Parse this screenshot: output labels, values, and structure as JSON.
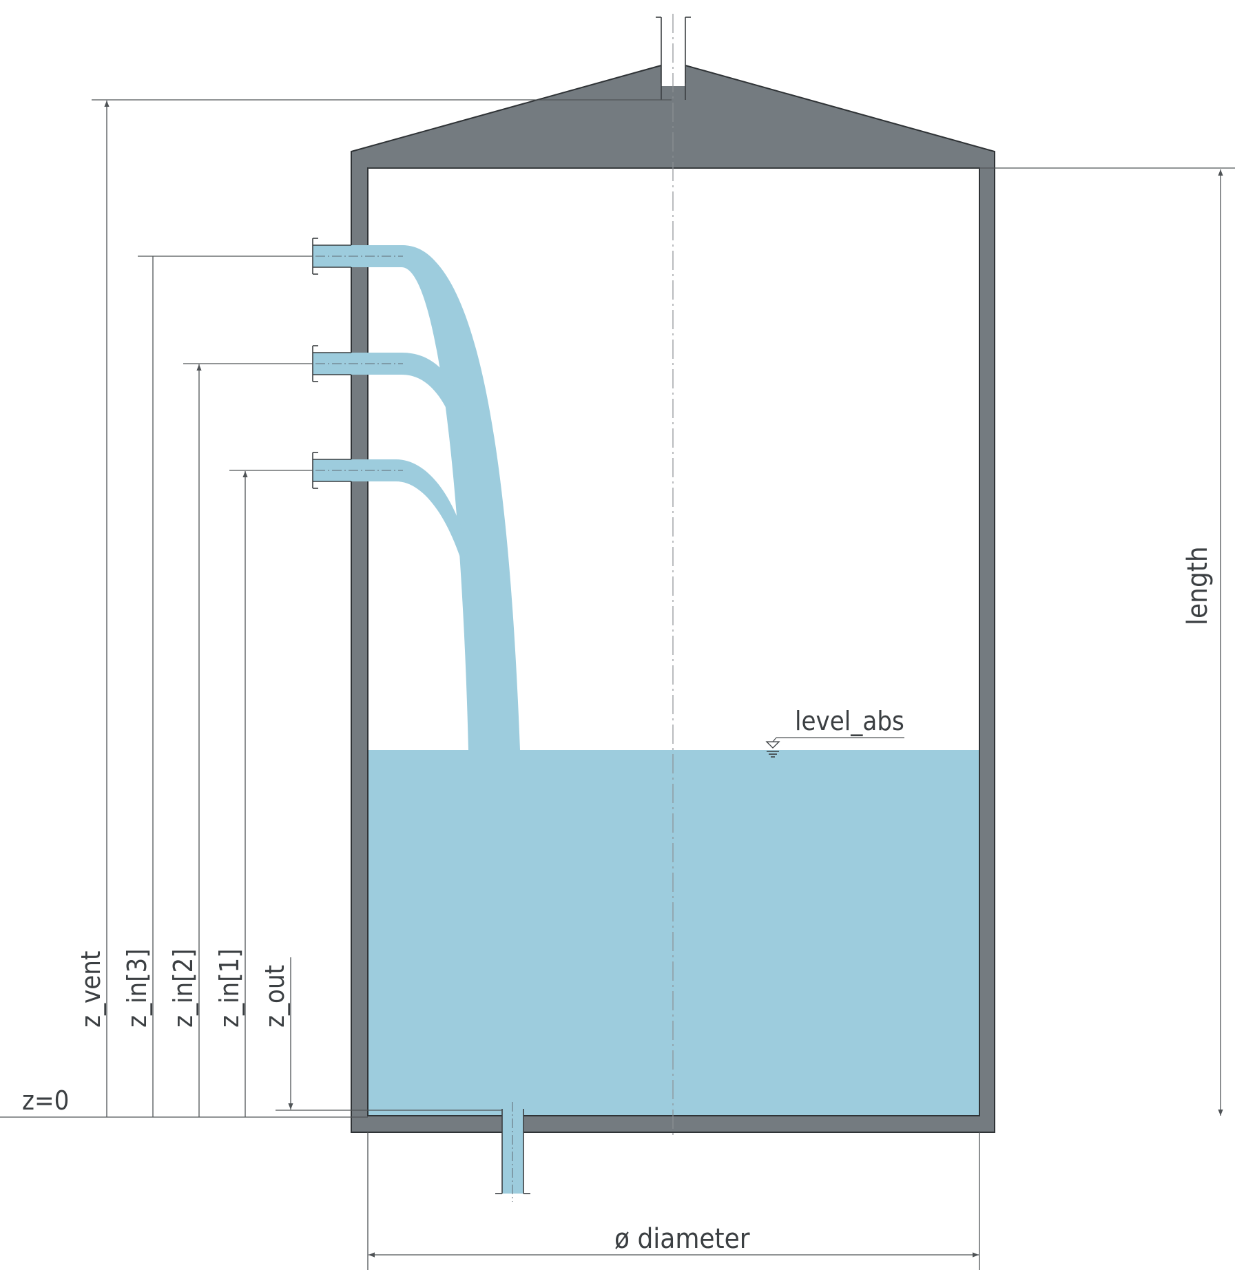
{
  "colors": {
    "wall": "#747b80",
    "wall_edge": "#2f3336",
    "liquid": "#9dccdd",
    "line": "#3a3e41",
    "text": "#3b3f42"
  },
  "labels": {
    "z_vent": "z_vent",
    "z_in_3": "z_in[3]",
    "z_in_2": "z_in[2]",
    "z_in_1": "z_in[1]",
    "z_out": "z_out",
    "z_zero": "z=0",
    "length": "length",
    "level_abs": "level_abs",
    "diameter": "ø diameter"
  }
}
